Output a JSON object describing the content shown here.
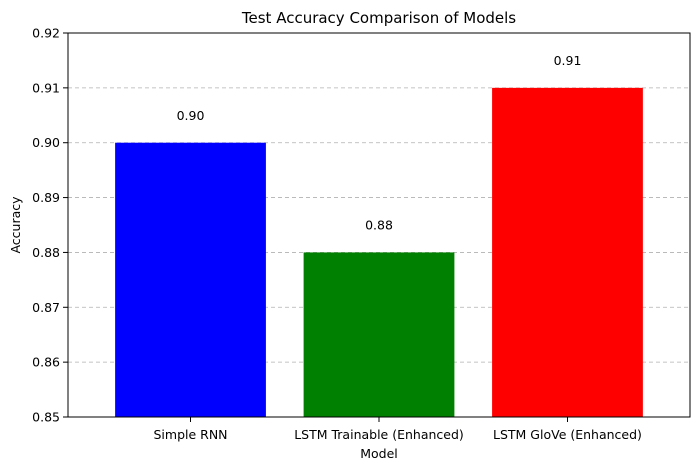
{
  "chart_data": {
    "type": "bar",
    "title": "Test Accuracy Comparison of Models",
    "xlabel": "Model",
    "ylabel": "Accuracy",
    "categories": [
      "Simple RNN",
      "LSTM Trainable (Enhanced)",
      "LSTM GloVe (Enhanced)"
    ],
    "values": [
      0.9,
      0.88,
      0.91
    ],
    "data_labels": [
      "0.90",
      "0.88",
      "0.91"
    ],
    "colors": [
      "#0000ff",
      "#008000",
      "#ff0000"
    ],
    "ylim": [
      0.85,
      0.92
    ],
    "yticks": [
      0.85,
      0.86,
      0.87,
      0.88,
      0.89,
      0.9,
      0.91,
      0.92
    ],
    "ytick_labels": [
      "0.85",
      "0.86",
      "0.87",
      "0.88",
      "0.89",
      "0.90",
      "0.91",
      "0.92"
    ],
    "grid": "y-dashed",
    "legend": "none"
  }
}
